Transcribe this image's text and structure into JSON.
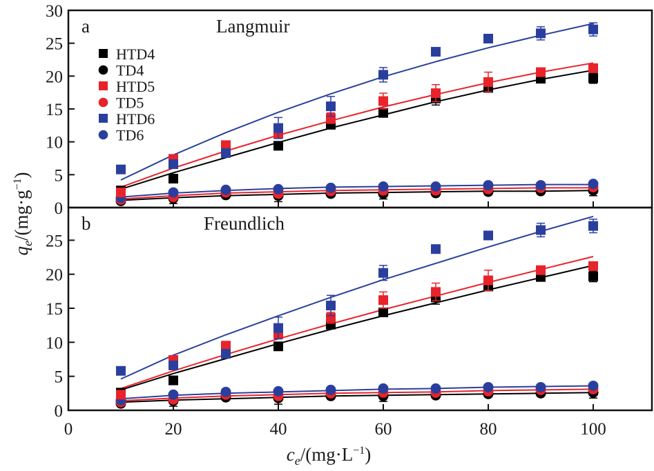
{
  "chart_data": {
    "type": "scatter",
    "xlabel": "c_e/(mg·L⁻¹)",
    "xlabel_parts": {
      "var": "c",
      "sub": "e",
      "rest": "/(mg·L",
      "sup": "−1",
      "close": ")"
    },
    "ylabel": "q_e/(mg·g⁻¹)",
    "ylabel_parts": {
      "var": "q",
      "sub": "e",
      "rest": "/(mg·g",
      "sup": "−1",
      "close": ")"
    },
    "xlim": [
      0,
      112
    ],
    "xticks": [
      0,
      20,
      40,
      60,
      80,
      100
    ],
    "grid": false,
    "legend": {
      "placement": "top-left (panel a)",
      "entries": [
        {
          "label": "HTD4",
          "marker": "square",
          "color": "#000000"
        },
        {
          "label": "TD4",
          "marker": "circle",
          "color": "#000000"
        },
        {
          "label": "HTD5",
          "marker": "square",
          "color": "#e8232a"
        },
        {
          "label": "TD5",
          "marker": "circle",
          "color": "#e8232a"
        },
        {
          "label": "HTD6",
          "marker": "square",
          "color": "#2a3f9d"
        },
        {
          "label": "TD6",
          "marker": "circle",
          "color": "#2a3f9d"
        }
      ]
    },
    "x": [
      10,
      20,
      30,
      40,
      50,
      60,
      70,
      80,
      90,
      100
    ],
    "series": [
      {
        "name": "HTD4",
        "marker": "square",
        "color": "#000000",
        "values": [
          2.6,
          4.4,
          9.3,
          9.4,
          12.6,
          14.4,
          16.6,
          18.2,
          19.6,
          19.7
        ],
        "errors": [
          0.3,
          0.3,
          0.3,
          0.4,
          0.4,
          0.5,
          1.0,
          0.6,
          0.6,
          0.8
        ]
      },
      {
        "name": "TD4",
        "marker": "circle",
        "color": "#000000",
        "values": [
          1.0,
          1.4,
          1.9,
          1.8,
          2.1,
          2.1,
          2.2,
          2.4,
          2.5,
          2.6
        ],
        "errors": [
          0.2,
          0.8,
          0.2,
          0.9,
          0.2,
          0.8,
          0.2,
          0.2,
          0.2,
          0.8
        ]
      },
      {
        "name": "HTD5",
        "marker": "square",
        "color": "#e8232a",
        "values": [
          2.3,
          7.4,
          9.5,
          11.2,
          13.6,
          16.2,
          17.4,
          19.1,
          20.6,
          21.2
        ],
        "errors": [
          0.3,
          0.4,
          0.4,
          0.6,
          0.8,
          1.2,
          1.3,
          1.5,
          0.6,
          0.6
        ]
      },
      {
        "name": "TD5",
        "marker": "circle",
        "color": "#e8232a",
        "values": [
          1.2,
          1.6,
          2.3,
          2.1,
          2.5,
          2.6,
          2.6,
          2.8,
          3.0,
          3.1
        ],
        "errors": [
          0.2,
          0.2,
          0.2,
          0.2,
          0.2,
          0.2,
          0.2,
          0.2,
          0.2,
          0.2
        ]
      },
      {
        "name": "HTD6",
        "marker": "square",
        "color": "#2a3f9d",
        "values": [
          5.8,
          6.6,
          8.3,
          12.1,
          15.4,
          20.2,
          23.7,
          25.7,
          26.5,
          27.1
        ],
        "errors": [
          0.3,
          0.4,
          0.5,
          1.6,
          1.5,
          1.1,
          0.6,
          0.6,
          1.0,
          1.0
        ]
      },
      {
        "name": "TD6",
        "marker": "circle",
        "color": "#2a3f9d",
        "values": [
          1.5,
          2.3,
          2.7,
          2.8,
          3.0,
          3.2,
          3.2,
          3.4,
          3.4,
          3.6
        ],
        "errors": [
          0.2,
          0.2,
          0.2,
          0.2,
          0.2,
          0.2,
          0.3,
          0.2,
          0.2,
          0.3
        ]
      }
    ],
    "panels": [
      {
        "letter": "a",
        "title": "Langmuir",
        "ylim": [
          0,
          30
        ],
        "yticks": [
          0,
          5,
          10,
          15,
          20,
          25,
          30
        ],
        "fits": [
          {
            "name": "HTD4 fit",
            "color": "#000000",
            "x": [
              10,
              20,
              30,
              40,
              50,
              60,
              70,
              80,
              90,
              100
            ],
            "y": [
              2.8,
              5.3,
              7.6,
              9.9,
              12.1,
              14.1,
              16.1,
              17.9,
              19.5,
              20.9
            ]
          },
          {
            "name": "TD4 fit",
            "color": "#000000",
            "x": [
              10,
              20,
              30,
              40,
              50,
              60,
              70,
              80,
              90,
              100
            ],
            "y": [
              1.1,
              1.5,
              1.8,
              2.0,
              2.2,
              2.3,
              2.4,
              2.5,
              2.5,
              2.6
            ]
          },
          {
            "name": "HTD5 fit",
            "color": "#e8232a",
            "x": [
              10,
              20,
              30,
              40,
              50,
              60,
              70,
              80,
              90,
              100
            ],
            "y": [
              3.1,
              6.0,
              8.6,
              11.0,
              13.2,
              15.3,
              17.2,
              19.0,
              20.6,
              22.0
            ]
          },
          {
            "name": "TD5 fit",
            "color": "#e8232a",
            "x": [
              10,
              20,
              30,
              40,
              50,
              60,
              70,
              80,
              90,
              100
            ],
            "y": [
              1.3,
              1.8,
              2.2,
              2.4,
              2.6,
              2.7,
              2.8,
              2.9,
              3.0,
              3.0
            ]
          },
          {
            "name": "HTD6 fit",
            "color": "#2a3f9d",
            "x": [
              10,
              20,
              30,
              40,
              50,
              60,
              70,
              80,
              90,
              100
            ],
            "y": [
              4.2,
              8.0,
              11.4,
              14.5,
              17.3,
              19.9,
              22.2,
              24.3,
              26.2,
              28.0
            ]
          },
          {
            "name": "TD6 fit",
            "color": "#2a3f9d",
            "x": [
              10,
              20,
              30,
              40,
              50,
              60,
              70,
              80,
              90,
              100
            ],
            "y": [
              1.6,
              2.2,
              2.6,
              2.9,
              3.1,
              3.2,
              3.3,
              3.4,
              3.5,
              3.5
            ]
          }
        ]
      },
      {
        "letter": "b",
        "title": "Freundlich",
        "ylim": [
          0,
          29.8
        ],
        "yticks": [
          0,
          5,
          10,
          15,
          20,
          25
        ],
        "fits": [
          {
            "name": "HTD4 fit",
            "color": "#000000",
            "x": [
              10,
              20,
              30,
              40,
              50,
              60,
              70,
              80,
              90,
              100
            ],
            "y": [
              3.0,
              5.4,
              7.6,
              9.8,
              11.9,
              13.9,
              15.8,
              17.7,
              19.5,
              21.3
            ]
          },
          {
            "name": "TD4 fit",
            "color": "#000000",
            "x": [
              10,
              20,
              30,
              40,
              50,
              60,
              70,
              80,
              90,
              100
            ],
            "y": [
              1.2,
              1.5,
              1.7,
              1.9,
              2.1,
              2.2,
              2.3,
              2.4,
              2.5,
              2.6
            ]
          },
          {
            "name": "HTD5 fit",
            "color": "#e8232a",
            "x": [
              10,
              20,
              30,
              40,
              50,
              60,
              70,
              80,
              90,
              100
            ],
            "y": [
              3.2,
              5.8,
              8.2,
              10.5,
              12.7,
              14.8,
              16.8,
              18.8,
              20.7,
              22.6
            ]
          },
          {
            "name": "TD5 fit",
            "color": "#e8232a",
            "x": [
              10,
              20,
              30,
              40,
              50,
              60,
              70,
              80,
              90,
              100
            ],
            "y": [
              1.4,
              1.8,
              2.1,
              2.3,
              2.5,
              2.6,
              2.7,
              2.9,
              3.0,
              3.1
            ]
          },
          {
            "name": "HTD6 fit",
            "color": "#2a3f9d",
            "x": [
              10,
              20,
              30,
              40,
              50,
              60,
              70,
              80,
              90,
              100
            ],
            "y": [
              4.6,
              8.1,
              11.1,
              13.9,
              16.6,
              19.2,
              21.6,
              24.0,
              26.3,
              28.5
            ]
          },
          {
            "name": "TD6 fit",
            "color": "#2a3f9d",
            "x": [
              10,
              20,
              30,
              40,
              50,
              60,
              70,
              80,
              90,
              100
            ],
            "y": [
              1.7,
              2.2,
              2.5,
              2.7,
              2.9,
              3.1,
              3.2,
              3.4,
              3.5,
              3.6
            ]
          }
        ]
      }
    ]
  }
}
